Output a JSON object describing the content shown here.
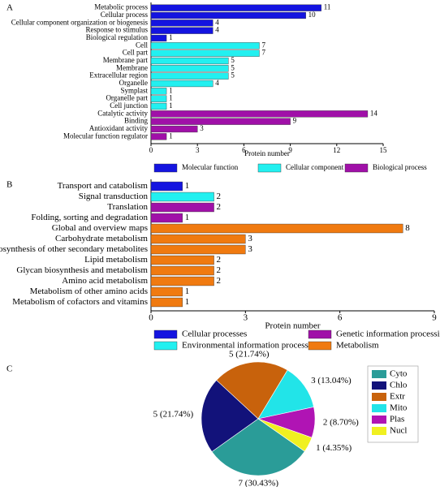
{
  "chart_data": [
    {
      "type": "hbar",
      "panel_label": "A",
      "categories": [
        "Metabolic process",
        "Cellular process",
        "Cellular component organization or biogenesis",
        "Response to stimulus",
        "Biological regulation",
        "Cell",
        "Cell part",
        "Membrane part",
        "Membrane",
        "Extracellular region",
        "Organelle",
        "Symplast",
        "Organelle part",
        "Cell junction",
        "Catalytic activity",
        "Binding",
        "Antioxidant activity",
        "Molecular function regulator"
      ],
      "series": [
        {
          "name": "Molecular function",
          "color": "#1414e0",
          "values": [
            11,
            10,
            4,
            4,
            1,
            null,
            null,
            null,
            null,
            null,
            null,
            null,
            null,
            null,
            null,
            null,
            null,
            null
          ]
        },
        {
          "name": "Cellular component",
          "color": "#22f0f0",
          "values": [
            null,
            null,
            null,
            null,
            null,
            7,
            7,
            5,
            5,
            5,
            4,
            1,
            1,
            1,
            null,
            null,
            null,
            null
          ]
        },
        {
          "name": "Biological process",
          "color": "#a010a8",
          "values": [
            null,
            null,
            null,
            null,
            null,
            null,
            null,
            null,
            null,
            null,
            null,
            null,
            null,
            null,
            14,
            9,
            3,
            1
          ]
        }
      ],
      "xlim": [
        0,
        15
      ],
      "xticks": [
        0,
        3,
        6,
        9,
        12,
        15
      ],
      "x_label": "Protein number"
    },
    {
      "type": "hbar",
      "panel_label": "B",
      "categories": [
        "Transport and catabolism",
        "Signal transduction",
        "Translation",
        "Folding, sorting and degradation",
        "Global and overview maps",
        "Carbohydrate metabolism",
        "Biosynthesis of other secondary metabolites",
        "Lipid metabolism",
        "Glycan biosynthesis and metabolism",
        "Amino acid metabolism",
        "Metabolism of other amino acids",
        "Metabolism of cofactors and vitamins"
      ],
      "series": [
        {
          "name": "Cellular processes",
          "color": "#1414e0",
          "values": [
            1,
            null,
            null,
            null,
            null,
            null,
            null,
            null,
            null,
            null,
            null,
            null
          ]
        },
        {
          "name": "Genetic information processing",
          "color": "#a010a8",
          "values": [
            null,
            null,
            2,
            1,
            null,
            null,
            null,
            null,
            null,
            null,
            null,
            null
          ]
        },
        {
          "name": "Environmental information processing",
          "color": "#22f0f0",
          "values": [
            null,
            2,
            null,
            null,
            null,
            null,
            null,
            null,
            null,
            null,
            null,
            null
          ]
        },
        {
          "name": "Metabolism",
          "color": "#f07a10",
          "values": [
            null,
            null,
            null,
            null,
            8,
            3,
            3,
            2,
            2,
            2,
            1,
            1
          ]
        }
      ],
      "xlim": [
        0,
        9
      ],
      "xticks": [
        0,
        3,
        6,
        9
      ],
      "x_label": "Protein number"
    },
    {
      "type": "pie",
      "panel_label": "C",
      "categories": [
        "Cyto",
        "Chlo",
        "Extr",
        "Mito",
        "Plas",
        "Nucl"
      ],
      "values": [
        7,
        5,
        5,
        3,
        2,
        1
      ],
      "value_labels": [
        "7 (30.43%)",
        "5 (21.74%)",
        "5 (21.74%)",
        "3 (13.04%)",
        "2 (8.70%)",
        "1 (4.35%)"
      ],
      "colors": [
        "#2a9c98",
        "#12127a",
        "#c8620c",
        "#22e4e8",
        "#b014b4",
        "#f0f020"
      ]
    }
  ]
}
